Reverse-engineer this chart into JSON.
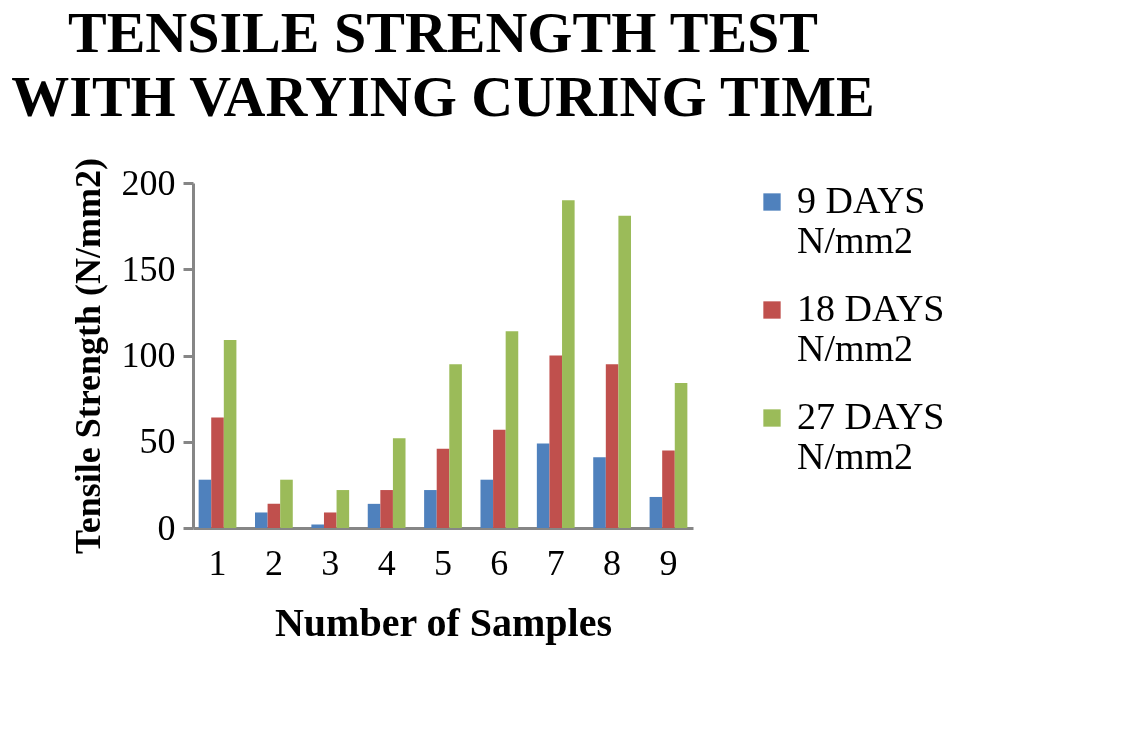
{
  "chart_data": {
    "type": "bar",
    "title": "TENSILE STRENGTH TEST WITH VARYING CURING TIME",
    "xlabel": "Number of Samples",
    "ylabel": "Tensile Strength (N/mm2)",
    "categories": [
      "1",
      "2",
      "3",
      "4",
      "5",
      "6",
      "7",
      "8",
      "9"
    ],
    "series": [
      {
        "name": "9 DAYS N/mm2",
        "color": "#4f81bd",
        "values": [
          28,
          9,
          2,
          14,
          22,
          28,
          49,
          41,
          18
        ]
      },
      {
        "name": "18 DAYS N/mm2",
        "color": "#c0504d",
        "values": [
          64,
          14,
          9,
          22,
          46,
          57,
          100,
          95,
          45
        ]
      },
      {
        "name": "27 DAYS N/mm2",
        "color": "#9bbb59",
        "values": [
          109,
          28,
          22,
          52,
          95,
          114,
          190,
          181,
          84
        ]
      }
    ],
    "ylim": [
      0,
      200
    ],
    "yticks": [
      0,
      50,
      100,
      150,
      200
    ],
    "grid": false,
    "legend": "right"
  }
}
